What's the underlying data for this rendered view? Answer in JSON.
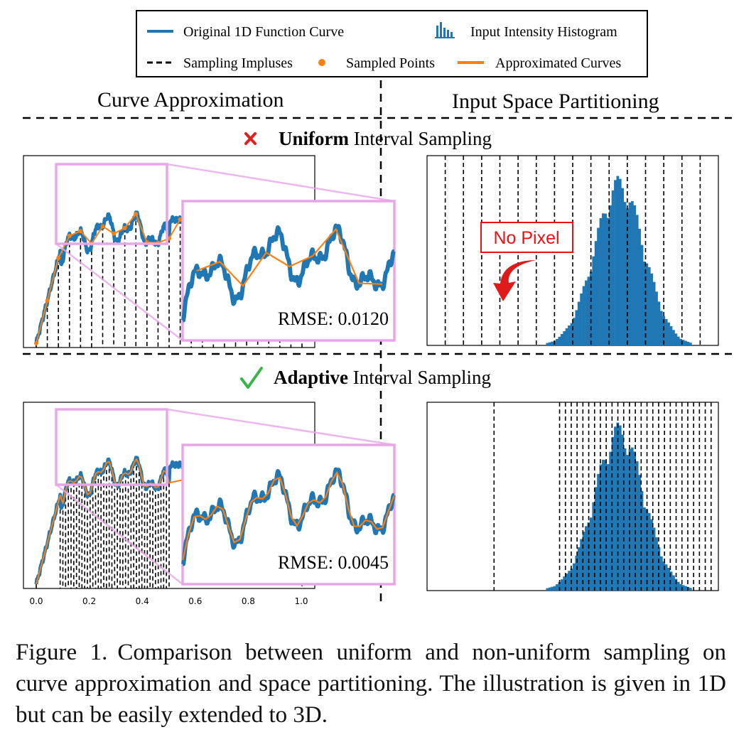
{
  "legend": {
    "original_curve": "Original 1D Function Curve",
    "histogram": "Input Intensity Histogram",
    "impulses": "Sampling Impluses",
    "sampled_points": "Sampled Points",
    "approx_curves": "Approximated Curves"
  },
  "headers": {
    "left": "Curve Approximation",
    "right": "Input Space Partitioning"
  },
  "rows": [
    {
      "status_icon": "cross-icon",
      "bold": "Uniform",
      "rest": " Interval Sampling",
      "rmse": "RMSE: 0.0120",
      "annotation": "No Pixel"
    },
    {
      "status_icon": "check-icon",
      "bold": "Adaptive",
      "rest": " Interval Sampling",
      "rmse": "RMSE: 0.0045",
      "annotation": ""
    }
  ],
  "x_ticks": [
    "0.0",
    "0.2",
    "0.4",
    "0.6",
    "0.8",
    "1.0"
  ],
  "colors": {
    "curve": "#1f77b4",
    "approx": "#ff7f0e",
    "points": "#ff7f0e",
    "zoom": "#e8a6e8",
    "hist": "#1f77b4",
    "cross": "#e02020",
    "check": "#3cb44b",
    "no_pixel": "#ee1111"
  },
  "caption": {
    "label": "Figure 1.",
    "text": "Comparison between uniform and non-uniform sampling on curve approximation and space partitioning. The illustration is given in 1D but can be easily extended to 3D."
  }
}
